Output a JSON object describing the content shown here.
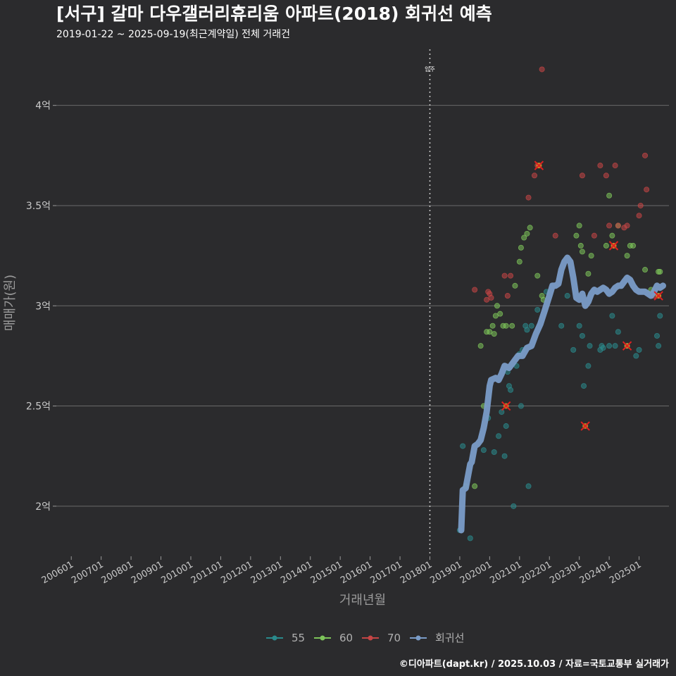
{
  "chart_data": {
    "type": "scatter",
    "title": "[서구] 갈마 다우갤러리휴리움 아파트(2018) 회귀선 예측",
    "subtitle": "2019-01-22 ~ 2025-09-19(최근계약일) 전체 거래건",
    "xlabel": "거래년월",
    "ylabel": "매매가(원)",
    "footer": "©디아파트(dapt.kr) / 2025.10.03 / 자료=국토교통부 실거래가",
    "xlim": [
      2005.5,
      2026.0
    ],
    "ylim": [
      1.75,
      4.28
    ],
    "y_ticks": [
      {
        "value": 2.0,
        "label": "2억"
      },
      {
        "value": 2.5,
        "label": "2.5억"
      },
      {
        "value": 3.0,
        "label": "3억"
      },
      {
        "value": 3.5,
        "label": "3.5억"
      },
      {
        "value": 4.0,
        "label": "4억"
      }
    ],
    "x_ticks": [
      {
        "value": 2006,
        "label": "200601"
      },
      {
        "value": 2007,
        "label": "200701"
      },
      {
        "value": 2008,
        "label": "200801"
      },
      {
        "value": 2009,
        "label": "200901"
      },
      {
        "value": 2010,
        "label": "201001"
      },
      {
        "value": 2011,
        "label": "201101"
      },
      {
        "value": 2012,
        "label": "201201"
      },
      {
        "value": 2013,
        "label": "201301"
      },
      {
        "value": 2014,
        "label": "201401"
      },
      {
        "value": 2015,
        "label": "201501"
      },
      {
        "value": 2016,
        "label": "201601"
      },
      {
        "value": 2017,
        "label": "201701"
      },
      {
        "value": 2018,
        "label": "201801"
      },
      {
        "value": 2019,
        "label": "201901"
      },
      {
        "value": 2020,
        "label": "202001"
      },
      {
        "value": 2021,
        "label": "202101"
      },
      {
        "value": 2022,
        "label": "202201"
      },
      {
        "value": 2023,
        "label": "202301"
      },
      {
        "value": 2024,
        "label": "202401"
      },
      {
        "value": 2025,
        "label": "202501"
      }
    ],
    "move_in": {
      "x": 2018.0,
      "label": "입주"
    },
    "colors": {
      "s55": "#2a8a8c",
      "s60": "#7dc45a",
      "s70": "#c44545",
      "reg": "#7a9cc8",
      "marker": "#e02020",
      "grid": "#6a6a6a"
    },
    "series": [
      {
        "name": "55",
        "color": "#2a8a8c",
        "points": [
          [
            2019.0,
            1.88
          ],
          [
            2019.1,
            2.3
          ],
          [
            2019.35,
            1.84
          ],
          [
            2019.8,
            2.28
          ],
          [
            2019.95,
            2.44
          ],
          [
            2020.15,
            2.27
          ],
          [
            2020.3,
            2.35
          ],
          [
            2020.4,
            2.47
          ],
          [
            2020.5,
            2.25
          ],
          [
            2020.55,
            2.4
          ],
          [
            2020.6,
            2.67
          ],
          [
            2020.65,
            2.6
          ],
          [
            2020.7,
            2.58
          ],
          [
            2020.8,
            2.0
          ],
          [
            2020.9,
            2.7
          ],
          [
            2021.0,
            2.76
          ],
          [
            2021.05,
            2.5
          ],
          [
            2021.1,
            2.78
          ],
          [
            2021.2,
            2.9
          ],
          [
            2021.25,
            2.88
          ],
          [
            2021.3,
            2.1
          ],
          [
            2021.4,
            2.9
          ],
          [
            2021.6,
            2.98
          ],
          [
            2021.9,
            3.07
          ],
          [
            2022.4,
            2.9
          ],
          [
            2022.6,
            3.05
          ],
          [
            2022.8,
            2.78
          ],
          [
            2023.0,
            2.9
          ],
          [
            2023.1,
            2.85
          ],
          [
            2023.15,
            2.6
          ],
          [
            2023.3,
            2.7
          ],
          [
            2023.35,
            2.8
          ],
          [
            2023.7,
            2.78
          ],
          [
            2023.75,
            2.8
          ],
          [
            2023.8,
            2.79
          ],
          [
            2024.0,
            2.8
          ],
          [
            2024.1,
            2.95
          ],
          [
            2024.2,
            2.8
          ],
          [
            2024.3,
            2.87
          ],
          [
            2024.6,
            2.8
          ],
          [
            2024.9,
            2.75
          ],
          [
            2025.0,
            2.78
          ],
          [
            2025.6,
            2.85
          ],
          [
            2025.65,
            2.8
          ],
          [
            2025.7,
            2.95
          ]
        ]
      },
      {
        "name": "60",
        "color": "#7dc45a",
        "points": [
          [
            2019.2,
            2.1
          ],
          [
            2019.5,
            2.1
          ],
          [
            2019.7,
            2.8
          ],
          [
            2019.8,
            2.5
          ],
          [
            2019.9,
            2.87
          ],
          [
            2020.0,
            2.87
          ],
          [
            2020.1,
            2.9
          ],
          [
            2020.15,
            2.86
          ],
          [
            2020.2,
            2.95
          ],
          [
            2020.25,
            3.0
          ],
          [
            2020.35,
            2.96
          ],
          [
            2020.45,
            2.9
          ],
          [
            2020.55,
            2.9
          ],
          [
            2020.75,
            2.9
          ],
          [
            2020.85,
            3.1
          ],
          [
            2021.0,
            3.22
          ],
          [
            2021.05,
            3.29
          ],
          [
            2021.15,
            3.34
          ],
          [
            2021.25,
            3.36
          ],
          [
            2021.35,
            3.39
          ],
          [
            2021.6,
            3.15
          ],
          [
            2021.75,
            3.05
          ],
          [
            2021.8,
            3.03
          ],
          [
            2022.9,
            3.35
          ],
          [
            2023.0,
            3.4
          ],
          [
            2023.05,
            3.3
          ],
          [
            2023.1,
            3.27
          ],
          [
            2023.3,
            3.16
          ],
          [
            2023.4,
            3.25
          ],
          [
            2023.9,
            3.3
          ],
          [
            2024.0,
            3.55
          ],
          [
            2024.1,
            3.35
          ],
          [
            2024.3,
            3.4
          ],
          [
            2024.6,
            3.25
          ],
          [
            2024.7,
            3.3
          ],
          [
            2024.8,
            3.3
          ],
          [
            2025.2,
            3.18
          ],
          [
            2025.4,
            3.08
          ],
          [
            2025.65,
            3.17
          ],
          [
            2025.7,
            3.17
          ]
        ]
      },
      {
        "name": "70",
        "color": "#c44545",
        "points": [
          [
            2019.5,
            3.08
          ],
          [
            2019.9,
            3.03
          ],
          [
            2019.95,
            3.07
          ],
          [
            2020.0,
            3.06
          ],
          [
            2020.05,
            3.04
          ],
          [
            2020.5,
            3.15
          ],
          [
            2020.6,
            3.05
          ],
          [
            2020.7,
            3.15
          ],
          [
            2021.3,
            3.54
          ],
          [
            2021.5,
            3.65
          ],
          [
            2021.6,
            3.7
          ],
          [
            2021.65,
            3.7
          ],
          [
            2021.75,
            4.18
          ],
          [
            2022.2,
            3.35
          ],
          [
            2023.1,
            3.65
          ],
          [
            2023.5,
            3.35
          ],
          [
            2023.7,
            3.7
          ],
          [
            2023.9,
            3.65
          ],
          [
            2024.0,
            3.4
          ],
          [
            2024.15,
            3.3
          ],
          [
            2024.2,
            3.7
          ],
          [
            2024.3,
            3.4
          ],
          [
            2024.5,
            3.39
          ],
          [
            2024.6,
            3.4
          ],
          [
            2025.0,
            3.45
          ],
          [
            2025.05,
            3.5
          ],
          [
            2025.2,
            3.75
          ],
          [
            2025.25,
            3.58
          ],
          [
            2025.5,
            3.05
          ],
          [
            2025.65,
            3.05
          ]
        ]
      },
      {
        "name": "회귀선",
        "color": "#7a9cc8",
        "points": [
          [
            2019.05,
            1.88
          ],
          [
            2019.1,
            2.08
          ],
          [
            2019.2,
            2.09
          ],
          [
            2019.35,
            2.21
          ],
          [
            2019.4,
            2.22
          ],
          [
            2019.5,
            2.3
          ],
          [
            2019.6,
            2.31
          ],
          [
            2019.7,
            2.33
          ],
          [
            2019.8,
            2.39
          ],
          [
            2019.9,
            2.47
          ],
          [
            2020.0,
            2.6
          ],
          [
            2020.05,
            2.63
          ],
          [
            2020.2,
            2.64
          ],
          [
            2020.3,
            2.63
          ],
          [
            2020.4,
            2.66
          ],
          [
            2020.5,
            2.7
          ],
          [
            2020.65,
            2.69
          ],
          [
            2020.8,
            2.72
          ],
          [
            2020.95,
            2.75
          ],
          [
            2021.1,
            2.75
          ],
          [
            2021.25,
            2.79
          ],
          [
            2021.4,
            2.8
          ],
          [
            2021.55,
            2.86
          ],
          [
            2021.7,
            2.91
          ],
          [
            2021.85,
            2.98
          ],
          [
            2022.0,
            3.05
          ],
          [
            2022.1,
            3.1
          ],
          [
            2022.2,
            3.1
          ],
          [
            2022.3,
            3.11
          ],
          [
            2022.4,
            3.18
          ],
          [
            2022.5,
            3.22
          ],
          [
            2022.6,
            3.24
          ],
          [
            2022.7,
            3.22
          ],
          [
            2022.8,
            3.14
          ],
          [
            2022.9,
            3.04
          ],
          [
            2023.0,
            3.03
          ],
          [
            2023.1,
            3.06
          ],
          [
            2023.2,
            3.0
          ],
          [
            2023.3,
            3.02
          ],
          [
            2023.4,
            3.06
          ],
          [
            2023.5,
            3.08
          ],
          [
            2023.6,
            3.07
          ],
          [
            2023.7,
            3.08
          ],
          [
            2023.8,
            3.09
          ],
          [
            2023.9,
            3.08
          ],
          [
            2024.0,
            3.06
          ],
          [
            2024.1,
            3.07
          ],
          [
            2024.2,
            3.09
          ],
          [
            2024.3,
            3.1
          ],
          [
            2024.4,
            3.1
          ],
          [
            2024.5,
            3.12
          ],
          [
            2024.6,
            3.14
          ],
          [
            2024.7,
            3.13
          ],
          [
            2024.8,
            3.1
          ],
          [
            2024.9,
            3.08
          ],
          [
            2025.0,
            3.07
          ],
          [
            2025.1,
            3.07
          ],
          [
            2025.2,
            3.07
          ],
          [
            2025.3,
            3.06
          ],
          [
            2025.4,
            3.05
          ],
          [
            2025.5,
            3.07
          ],
          [
            2025.6,
            3.1
          ],
          [
            2025.7,
            3.09
          ],
          [
            2025.8,
            3.1
          ]
        ]
      }
    ],
    "highlight_points": [
      [
        2021.65,
        3.7
      ],
      [
        2020.55,
        2.5
      ],
      [
        2024.15,
        3.3
      ],
      [
        2024.6,
        2.8
      ],
      [
        2023.2,
        2.4
      ],
      [
        2025.65,
        3.05
      ]
    ],
    "legend": [
      {
        "label": "55",
        "color": "#2a8a8c"
      },
      {
        "label": "60",
        "color": "#7dc45a"
      },
      {
        "label": "70",
        "color": "#c44545"
      },
      {
        "label": "회귀선",
        "color": "#7a9cc8"
      }
    ]
  }
}
